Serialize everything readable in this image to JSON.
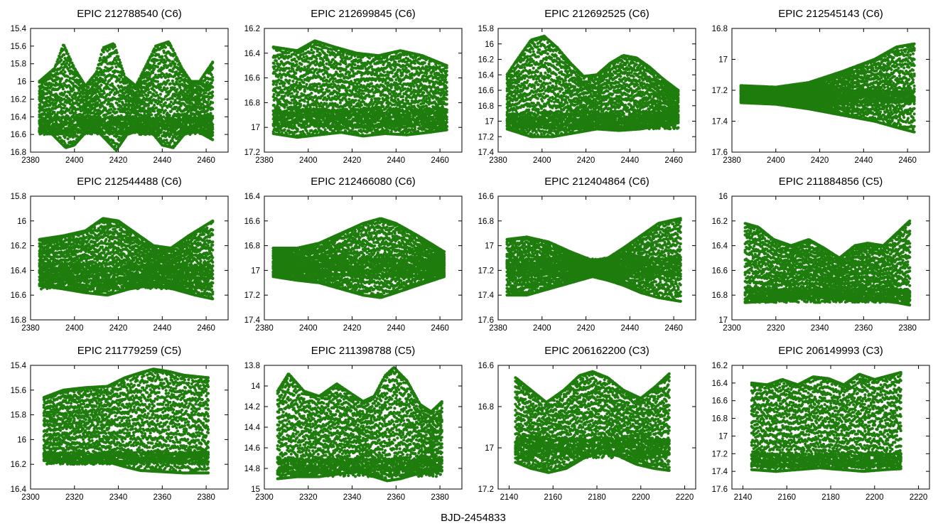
{
  "figure": {
    "xlabel": "BJD-2454833"
  },
  "colors": {
    "points": "#1e7d0d",
    "axes": "#000000"
  },
  "chart_data": [
    {
      "type": "scatter",
      "title": "EPIC 212788540 (C6)",
      "xlim": [
        2380,
        2470
      ],
      "xticks": [
        2380,
        2400,
        2420,
        2440,
        2460
      ],
      "ylim": [
        15.4,
        16.8
      ],
      "yticks": [
        15.4,
        15.6,
        15.8,
        16,
        16.2,
        16.4,
        16.6,
        16.8
      ],
      "y_inverted": true,
      "data_x_range": [
        2384,
        2463
      ],
      "upper_envelope": {
        "x": [
          2384,
          2391,
          2395,
          2400,
          2405,
          2410,
          2413,
          2418,
          2423,
          2428,
          2432,
          2437,
          2443,
          2449,
          2453,
          2457,
          2463
        ],
        "y": [
          16.0,
          15.85,
          15.58,
          15.85,
          16.05,
          15.9,
          15.62,
          15.57,
          15.95,
          16.05,
          15.85,
          15.6,
          15.55,
          15.85,
          16.0,
          16.0,
          15.78
        ]
      },
      "lower_envelope": {
        "x": [
          2384,
          2390,
          2396,
          2400,
          2405,
          2410,
          2414,
          2419,
          2424,
          2430,
          2436,
          2440,
          2445,
          2450,
          2455,
          2463
        ],
        "y": [
          16.55,
          16.6,
          16.75,
          16.72,
          16.58,
          16.55,
          16.65,
          16.78,
          16.6,
          16.55,
          16.6,
          16.72,
          16.75,
          16.6,
          16.55,
          16.66
        ]
      },
      "dense_band": [
        16.4,
        16.6
      ]
    },
    {
      "type": "scatter",
      "title": "EPIC 212699845 (C6)",
      "xlim": [
        2380,
        2470
      ],
      "xticks": [
        2380,
        2400,
        2420,
        2440,
        2460
      ],
      "ylim": [
        16.2,
        17.2
      ],
      "yticks": [
        16.2,
        16.4,
        16.6,
        16.8,
        17,
        17.2
      ],
      "y_inverted": true,
      "data_x_range": [
        2384,
        2463
      ],
      "upper_envelope": {
        "x": [
          2384,
          2395,
          2403,
          2412,
          2422,
          2432,
          2442,
          2452,
          2463
        ],
        "y": [
          16.35,
          16.38,
          16.3,
          16.35,
          16.4,
          16.42,
          16.38,
          16.42,
          16.5
        ]
      },
      "lower_envelope": {
        "x": [
          2384,
          2395,
          2405,
          2415,
          2425,
          2435,
          2445,
          2455,
          2463
        ],
        "y": [
          17.05,
          17.08,
          17.06,
          17.04,
          17.07,
          17.05,
          17.06,
          17.04,
          17.02
        ]
      },
      "dense_band": [
        16.85,
        17.0
      ]
    },
    {
      "type": "scatter",
      "title": "EPIC 212692525 (C6)",
      "xlim": [
        2380,
        2470
      ],
      "xticks": [
        2380,
        2400,
        2420,
        2440,
        2460
      ],
      "ylim": [
        15.8,
        17.4
      ],
      "yticks": [
        15.8,
        16,
        16.2,
        16.4,
        16.6,
        16.8,
        17,
        17.2,
        17.4
      ],
      "y_inverted": true,
      "data_x_range": [
        2384,
        2462
      ],
      "upper_envelope": {
        "x": [
          2384,
          2390,
          2395,
          2401,
          2407,
          2413,
          2419,
          2425,
          2431,
          2437,
          2443,
          2449,
          2455,
          2462
        ],
        "y": [
          16.4,
          16.15,
          15.95,
          15.9,
          16.05,
          16.25,
          16.42,
          16.4,
          16.25,
          16.15,
          16.18,
          16.3,
          16.45,
          16.6
        ]
      },
      "lower_envelope": {
        "x": [
          2384,
          2395,
          2405,
          2415,
          2425,
          2435,
          2445,
          2455,
          2462
        ],
        "y": [
          17.1,
          17.2,
          17.2,
          17.15,
          17.1,
          17.12,
          17.1,
          17.05,
          17.02
        ]
      },
      "dense_band": [
        16.9,
        17.1
      ]
    },
    {
      "type": "scatter",
      "title": "EPIC 212545143 (C6)",
      "xlim": [
        2380,
        2470
      ],
      "xticks": [
        2380,
        2400,
        2420,
        2440,
        2460
      ],
      "ylim": [
        16.8,
        17.6
      ],
      "yticks": [
        16.8,
        17,
        17.2,
        17.4,
        17.6
      ],
      "y_inverted": true,
      "data_x_range": [
        2384,
        2463
      ],
      "upper_envelope": {
        "x": [
          2384,
          2400,
          2415,
          2430,
          2445,
          2455,
          2463
        ],
        "y": [
          17.17,
          17.18,
          17.15,
          17.08,
          17.0,
          16.92,
          16.9
        ]
      },
      "lower_envelope": {
        "x": [
          2384,
          2400,
          2415,
          2430,
          2445,
          2455,
          2463
        ],
        "y": [
          17.28,
          17.29,
          17.32,
          17.36,
          17.4,
          17.44,
          17.47
        ]
      },
      "dense_band": [
        17.2,
        17.28
      ]
    },
    {
      "type": "scatter",
      "title": "EPIC 212544488 (C6)",
      "xlim": [
        2380,
        2470
      ],
      "xticks": [
        2380,
        2400,
        2420,
        2440,
        2460
      ],
      "ylim": [
        15.8,
        16.8
      ],
      "yticks": [
        15.8,
        16,
        16.2,
        16.4,
        16.6,
        16.8
      ],
      "y_inverted": true,
      "data_x_range": [
        2384,
        2463
      ],
      "upper_envelope": {
        "x": [
          2384,
          2395,
          2405,
          2413,
          2420,
          2428,
          2436,
          2444,
          2452,
          2463
        ],
        "y": [
          16.15,
          16.12,
          16.08,
          15.98,
          16.0,
          16.1,
          16.2,
          16.22,
          16.12,
          16.0
        ]
      },
      "lower_envelope": {
        "x": [
          2384,
          2395,
          2405,
          2415,
          2425,
          2435,
          2445,
          2455,
          2463
        ],
        "y": [
          16.52,
          16.55,
          16.58,
          16.6,
          16.55,
          16.52,
          16.55,
          16.6,
          16.63
        ]
      },
      "dense_band": [
        16.35,
        16.55
      ]
    },
    {
      "type": "scatter",
      "title": "EPIC 212466080 (C6)",
      "xlim": [
        2380,
        2470
      ],
      "xticks": [
        2380,
        2400,
        2420,
        2440,
        2460
      ],
      "ylim": [
        16.4,
        17.4
      ],
      "yticks": [
        16.4,
        16.6,
        16.8,
        17,
        17.2,
        17.4
      ],
      "y_inverted": true,
      "data_x_range": [
        2384,
        2462
      ],
      "upper_envelope": {
        "x": [
          2384,
          2395,
          2405,
          2415,
          2425,
          2433,
          2440,
          2450,
          2462
        ],
        "y": [
          16.82,
          16.82,
          16.78,
          16.7,
          16.62,
          16.58,
          16.62,
          16.72,
          16.85
        ]
      },
      "lower_envelope": {
        "x": [
          2384,
          2395,
          2405,
          2415,
          2425,
          2433,
          2440,
          2450,
          2462
        ],
        "y": [
          17.05,
          17.08,
          17.1,
          17.15,
          17.2,
          17.22,
          17.18,
          17.12,
          17.05
        ]
      },
      "dense_band": [
        16.9,
        17.05
      ]
    },
    {
      "type": "scatter",
      "title": "EPIC 212404864 (C6)",
      "xlim": [
        2380,
        2470
      ],
      "xticks": [
        2380,
        2400,
        2420,
        2440,
        2460
      ],
      "ylim": [
        16.6,
        17.6
      ],
      "yticks": [
        16.6,
        16.8,
        17,
        17.2,
        17.4,
        17.6
      ],
      "y_inverted": true,
      "data_x_range": [
        2384,
        2463
      ],
      "upper_envelope": {
        "x": [
          2384,
          2393,
          2403,
          2413,
          2423,
          2430,
          2437,
          2445,
          2453,
          2463
        ],
        "y": [
          16.95,
          16.93,
          16.97,
          17.05,
          17.12,
          17.1,
          17.02,
          16.92,
          16.82,
          16.78
        ]
      },
      "lower_envelope": {
        "x": [
          2384,
          2393,
          2403,
          2413,
          2423,
          2430,
          2437,
          2445,
          2453,
          2463
        ],
        "y": [
          17.4,
          17.4,
          17.35,
          17.3,
          17.25,
          17.28,
          17.32,
          17.38,
          17.42,
          17.45
        ]
      },
      "dense_band": [
        17.1,
        17.25
      ]
    },
    {
      "type": "scatter",
      "title": "EPIC 211884856 (C5)",
      "xlim": [
        2300,
        2390
      ],
      "xticks": [
        2300,
        2320,
        2340,
        2360,
        2380
      ],
      "ylim": [
        16,
        17
      ],
      "yticks": [
        16,
        16.2,
        16.4,
        16.6,
        16.8,
        17
      ],
      "y_inverted": true,
      "data_x_range": [
        2306,
        2381
      ],
      "upper_envelope": {
        "x": [
          2306,
          2312,
          2319,
          2327,
          2335,
          2342,
          2349,
          2356,
          2362,
          2369,
          2375,
          2381
        ],
        "y": [
          16.22,
          16.25,
          16.35,
          16.4,
          16.35,
          16.42,
          16.5,
          16.4,
          16.38,
          16.4,
          16.3,
          16.2
        ]
      },
      "lower_envelope": {
        "x": [
          2306,
          2315,
          2325,
          2335,
          2345,
          2355,
          2365,
          2375,
          2381
        ],
        "y": [
          16.86,
          16.85,
          16.83,
          16.82,
          16.82,
          16.83,
          16.84,
          16.86,
          16.88
        ]
      },
      "dense_band": [
        16.75,
        16.86
      ]
    },
    {
      "type": "scatter",
      "title": "EPIC 211779259 (C5)",
      "xlim": [
        2300,
        2390
      ],
      "xticks": [
        2300,
        2320,
        2340,
        2360,
        2380
      ],
      "ylim": [
        15.4,
        16.4
      ],
      "yticks": [
        15.4,
        15.6,
        15.8,
        16,
        16.2,
        16.4
      ],
      "y_inverted": true,
      "data_x_range": [
        2306,
        2381
      ],
      "upper_envelope": {
        "x": [
          2306,
          2315,
          2325,
          2335,
          2343,
          2350,
          2356,
          2363,
          2370,
          2381
        ],
        "y": [
          15.66,
          15.6,
          15.58,
          15.57,
          15.5,
          15.46,
          15.43,
          15.45,
          15.48,
          15.5
        ]
      },
      "lower_envelope": {
        "x": [
          2306,
          2315,
          2325,
          2335,
          2343,
          2350,
          2360,
          2370,
          2381
        ],
        "y": [
          16.17,
          16.18,
          16.18,
          16.18,
          16.22,
          16.25,
          16.26,
          16.27,
          16.27
        ]
      },
      "dense_band": [
        16.1,
        16.2
      ]
    },
    {
      "type": "scatter",
      "title": "EPIC 211398788 (C5)",
      "xlim": [
        2300,
        2390
      ],
      "xticks": [
        2300,
        2320,
        2340,
        2360,
        2380
      ],
      "ylim": [
        13.8,
        15
      ],
      "yticks": [
        13.8,
        14,
        14.2,
        14.4,
        14.6,
        14.8,
        15
      ],
      "y_inverted": true,
      "data_x_range": [
        2306,
        2381
      ],
      "upper_envelope": {
        "x": [
          2306,
          2311,
          2318,
          2325,
          2333,
          2340,
          2345,
          2350,
          2355,
          2359,
          2365,
          2371,
          2376,
          2381
        ],
        "y": [
          14.05,
          13.88,
          14.05,
          14.1,
          13.98,
          14.08,
          14.15,
          14.1,
          13.9,
          13.82,
          13.95,
          14.18,
          14.25,
          14.15
        ]
      },
      "lower_envelope": {
        "x": [
          2306,
          2315,
          2325,
          2335,
          2342,
          2350,
          2356,
          2362,
          2370,
          2381
        ],
        "y": [
          14.9,
          14.88,
          14.88,
          14.85,
          14.83,
          14.88,
          14.92,
          14.9,
          14.85,
          14.82
        ]
      },
      "dense_band": [
        14.7,
        14.88
      ]
    },
    {
      "type": "scatter",
      "title": "EPIC 206162200 (C3)",
      "xlim": [
        2135,
        2225
      ],
      "xticks": [
        2140,
        2160,
        2180,
        2200,
        2220
      ],
      "ylim": [
        16.6,
        17.2
      ],
      "yticks": [
        16.6,
        16.8,
        17,
        17.2
      ],
      "y_inverted": true,
      "data_x_range": [
        2143,
        2213
      ],
      "upper_envelope": {
        "x": [
          2143,
          2150,
          2157,
          2165,
          2172,
          2178,
          2185,
          2192,
          2200,
          2207,
          2213
        ],
        "y": [
          16.66,
          16.72,
          16.78,
          16.72,
          16.65,
          16.63,
          16.66,
          16.72,
          16.76,
          16.7,
          16.64
        ]
      },
      "lower_envelope": {
        "x": [
          2143,
          2150,
          2158,
          2166,
          2174,
          2182,
          2190,
          2198,
          2206,
          2213
        ],
        "y": [
          17.07,
          17.1,
          17.12,
          17.1,
          17.05,
          17.02,
          17.04,
          17.08,
          17.1,
          17.11
        ]
      },
      "dense_band": [
        16.95,
        17.05
      ]
    },
    {
      "type": "scatter",
      "title": "EPIC 206149993 (C3)",
      "xlim": [
        2135,
        2225
      ],
      "xticks": [
        2140,
        2160,
        2180,
        2200,
        2220
      ],
      "ylim": [
        16.2,
        17.6
      ],
      "yticks": [
        16.2,
        16.4,
        16.6,
        16.8,
        17,
        17.2,
        17.4,
        17.6
      ],
      "y_inverted": true,
      "data_x_range": [
        2144,
        2212
      ],
      "upper_envelope": {
        "x": [
          2144,
          2151,
          2158,
          2165,
          2172,
          2179,
          2186,
          2193,
          2200,
          2206,
          2212
        ],
        "y": [
          16.4,
          16.42,
          16.36,
          16.42,
          16.33,
          16.35,
          16.42,
          16.3,
          16.36,
          16.32,
          16.28
        ]
      },
      "lower_envelope": {
        "x": [
          2144,
          2155,
          2165,
          2175,
          2185,
          2195,
          2205,
          2212
        ],
        "y": [
          17.38,
          17.4,
          17.38,
          17.36,
          17.38,
          17.4,
          17.38,
          17.37
        ]
      },
      "dense_band": [
        17.2,
        17.35
      ]
    }
  ]
}
